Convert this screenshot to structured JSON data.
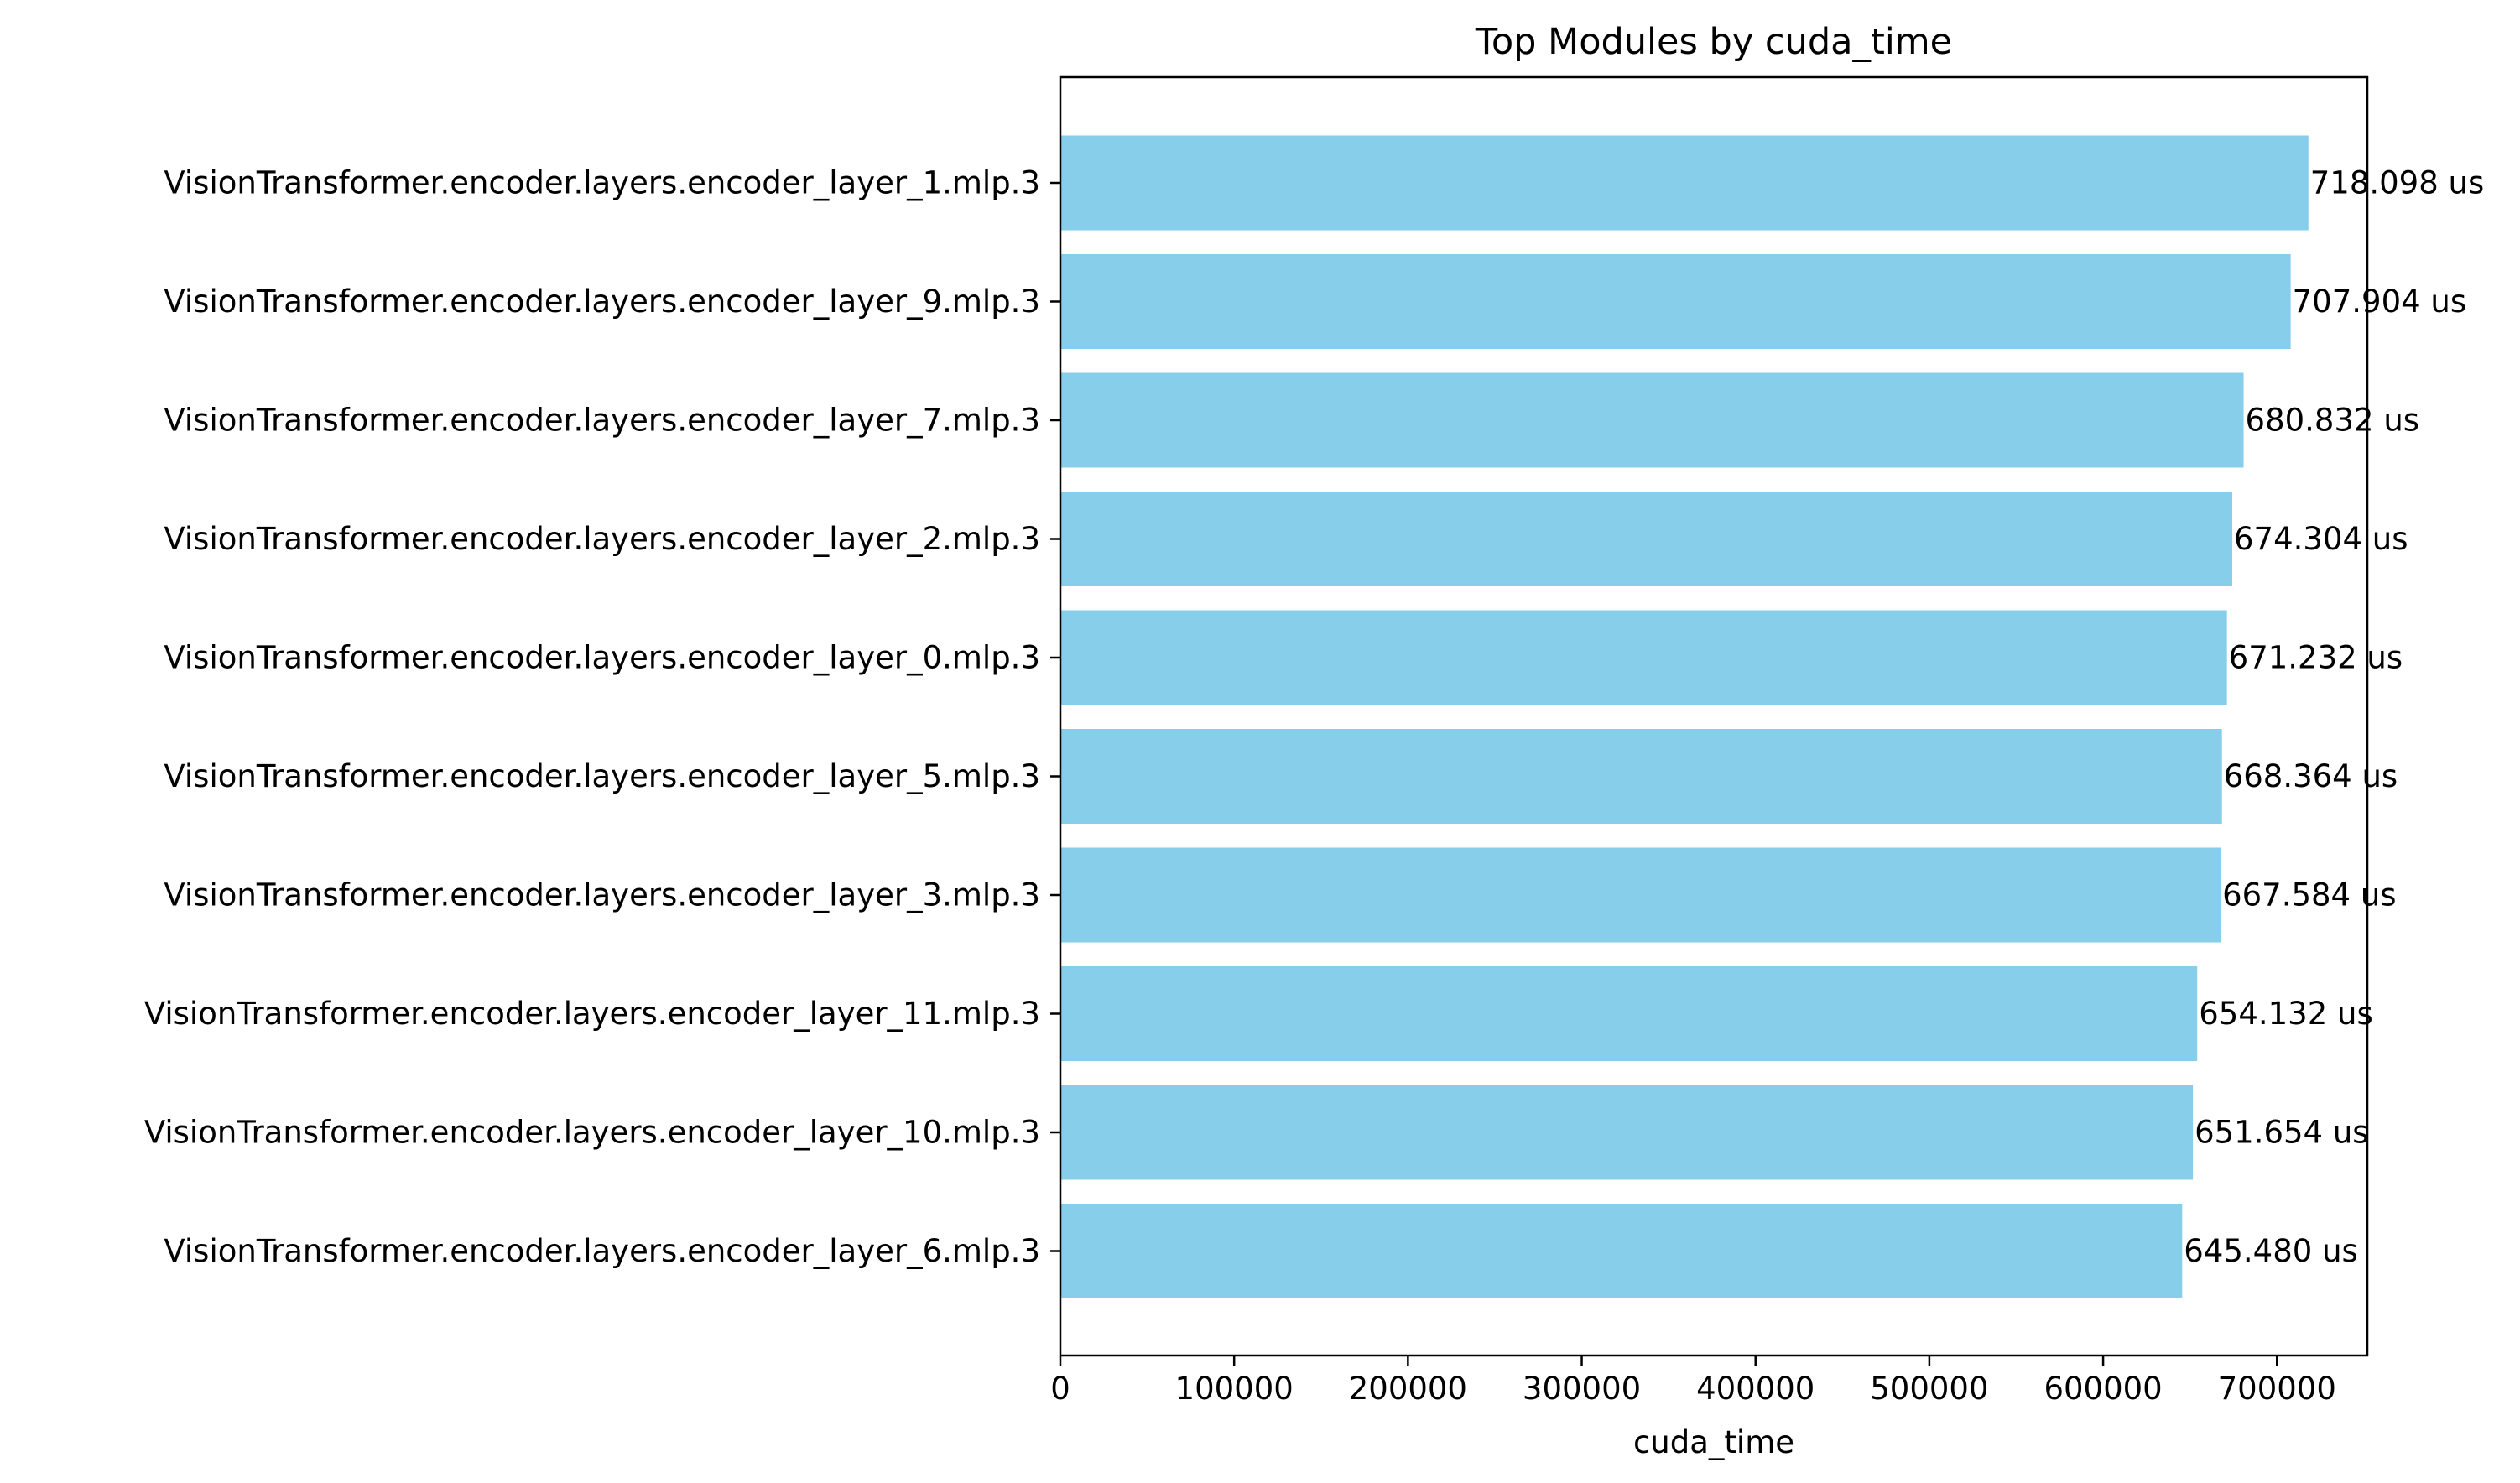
{
  "chart_data": {
    "type": "bar",
    "orientation": "horizontal",
    "title": "Top Modules by cuda_time",
    "xlabel": "cuda_time",
    "ylabel": "",
    "xlim": [
      0,
      752000
    ],
    "xticks": [
      0,
      100000,
      200000,
      300000,
      400000,
      500000,
      600000,
      700000
    ],
    "bar_color": "#87CEEB",
    "grid": false,
    "categories": [
      "VisionTransformer.encoder.layers.encoder_layer_1.mlp.3",
      "VisionTransformer.encoder.layers.encoder_layer_9.mlp.3",
      "VisionTransformer.encoder.layers.encoder_layer_7.mlp.3",
      "VisionTransformer.encoder.layers.encoder_layer_2.mlp.3",
      "VisionTransformer.encoder.layers.encoder_layer_0.mlp.3",
      "VisionTransformer.encoder.layers.encoder_layer_5.mlp.3",
      "VisionTransformer.encoder.layers.encoder_layer_3.mlp.3",
      "VisionTransformer.encoder.layers.encoder_layer_11.mlp.3",
      "VisionTransformer.encoder.layers.encoder_layer_10.mlp.3",
      "VisionTransformer.encoder.layers.encoder_layer_6.mlp.3"
    ],
    "values": [
      718098,
      707904,
      680832,
      674304,
      671232,
      668364,
      667584,
      654132,
      651654,
      645480
    ],
    "data_labels": [
      "718.098 us",
      "707.904 us",
      "680.832 us",
      "674.304 us",
      "671.232 us",
      "668.364 us",
      "667.584 us",
      "654.132 us",
      "651.654 us",
      "645.480 us"
    ]
  }
}
